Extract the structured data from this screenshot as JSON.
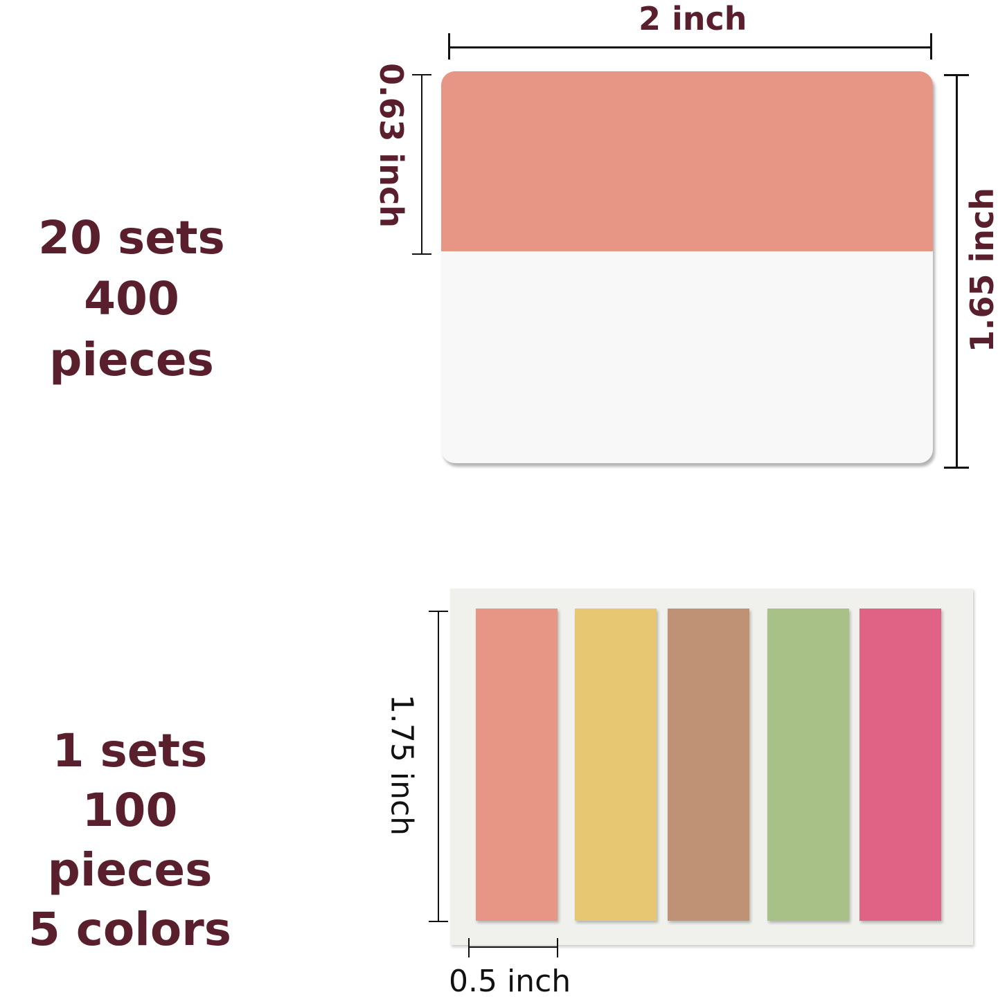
{
  "top": {
    "sets": "20 sets",
    "pieces": "400 pieces",
    "width_label": "2 inch",
    "height_label": "1.65 inch",
    "color_band_label": "0.63 inch",
    "band_color": "#e79585"
  },
  "bottom": {
    "sets": "1 sets",
    "pieces": "100 pieces",
    "colors": "5 colors",
    "height_label": "1.75 inch",
    "width_label": "0.5 inch",
    "flag_colors": [
      "#e79585",
      "#e8c772",
      "#bf9276",
      "#a8c187",
      "#e06386"
    ]
  }
}
